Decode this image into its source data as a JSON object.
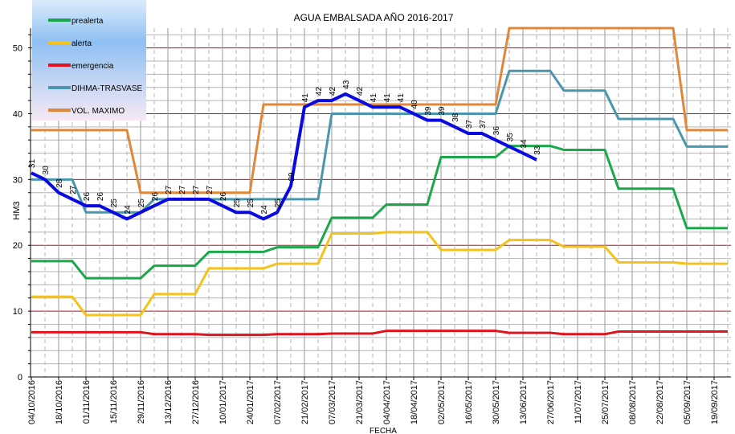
{
  "chart_data": {
    "type": "line",
    "title": "AGUA EMBALSADA AÑO 2016-2017",
    "xlabel": "FECHA",
    "ylabel": "HM3",
    "ylim": [
      0,
      53
    ],
    "yticks": [
      0,
      10,
      20,
      30,
      40,
      50
    ],
    "grid": true,
    "legend_position": "top-left",
    "x_tick_labels": [
      "04/10/2016",
      "18/10/2016",
      "01/11/2016",
      "15/11/2016",
      "29/11/2016",
      "13/12/2016",
      "27/12/2016",
      "10/01/2017",
      "24/01/2017",
      "07/02/2017",
      "21/02/2017",
      "07/03/2017",
      "21/03/2017",
      "04/04/2017",
      "18/04/2017",
      "02/05/2017",
      "16/05/2017",
      "30/05/2017",
      "13/06/2017",
      "27/06/2017",
      "11/07/2017",
      "25/07/2017",
      "08/08/2017",
      "22/08/2017",
      "05/09/2017",
      "19/09/2017"
    ],
    "series": [
      {
        "name": "prealerta",
        "color": "#1aa84a",
        "values": [
          17.6,
          17.6,
          17.6,
          17.6,
          15,
          15,
          15,
          15,
          15,
          16.9,
          16.9,
          16.9,
          16.9,
          19,
          19,
          19,
          19,
          19,
          19.7,
          19.7,
          19.7,
          19.7,
          24.2,
          24.2,
          24.2,
          24.2,
          26.2,
          26.2,
          26.2,
          26.2,
          33.4,
          33.4,
          33.4,
          33.4,
          33.4,
          35.1,
          35.1,
          35.1,
          35.1,
          34.5,
          34.5,
          34.5,
          34.5,
          28.6,
          28.6,
          28.6,
          28.6,
          28.6,
          22.6,
          22.6,
          22.6,
          22.6
        ]
      },
      {
        "name": "alerta",
        "color": "#f5c11b",
        "values": [
          12.2,
          12.2,
          12.2,
          12.2,
          9.4,
          9.4,
          9.4,
          9.4,
          9.4,
          12.6,
          12.6,
          12.6,
          12.6,
          16.5,
          16.5,
          16.5,
          16.5,
          16.5,
          17.2,
          17.2,
          17.2,
          17.2,
          21.8,
          21.8,
          21.8,
          21.8,
          22,
          22,
          22,
          22,
          19.3,
          19.3,
          19.3,
          19.3,
          19.3,
          20.8,
          20.8,
          20.8,
          20.8,
          19.8,
          19.8,
          19.8,
          19.8,
          17.4,
          17.4,
          17.4,
          17.4,
          17.4,
          17.2,
          17.2,
          17.2,
          17.2
        ]
      },
      {
        "name": "emergencia",
        "color": "#e0141e",
        "values": [
          6.8,
          6.8,
          6.8,
          6.8,
          6.8,
          6.8,
          6.8,
          6.8,
          6.8,
          6.5,
          6.5,
          6.5,
          6.5,
          6.4,
          6.4,
          6.4,
          6.4,
          6.4,
          6.5,
          6.5,
          6.5,
          6.5,
          6.6,
          6.6,
          6.6,
          6.6,
          7,
          7,
          7,
          7,
          7,
          7,
          7,
          7,
          7,
          6.7,
          6.7,
          6.7,
          6.7,
          6.5,
          6.5,
          6.5,
          6.5,
          6.9,
          6.9,
          6.9,
          6.9,
          6.9,
          6.9,
          6.9,
          6.9,
          6.9
        ]
      },
      {
        "name": "DIHMA-TRASVASE",
        "color": "#4a97ad",
        "values": [
          30,
          30,
          30,
          30,
          25,
          25,
          25,
          25,
          25,
          27,
          27,
          27,
          27,
          27,
          27,
          27,
          27,
          27,
          27,
          27,
          27,
          27,
          40,
          40,
          40,
          40,
          40,
          40,
          40,
          40,
          40,
          40,
          40,
          40,
          40,
          46.5,
          46.5,
          46.5,
          46.5,
          43.5,
          43.5,
          43.5,
          43.5,
          39.2,
          39.2,
          39.2,
          39.2,
          39.2,
          35,
          35,
          35,
          35
        ]
      },
      {
        "name": "VOL. MAXIMO",
        "color": "#e0873a",
        "values": [
          37.5,
          37.5,
          37.5,
          37.5,
          37.5,
          37.5,
          37.5,
          37.5,
          28,
          28,
          28,
          28,
          28,
          28,
          28,
          28,
          28,
          41.4,
          41.4,
          41.4,
          41.4,
          41.4,
          41.4,
          41.4,
          41.4,
          41.4,
          41.4,
          41.4,
          41.4,
          41.4,
          41.4,
          41.4,
          41.4,
          41.4,
          41.4,
          53,
          53,
          53,
          53,
          53,
          53,
          53,
          53,
          53,
          53,
          53,
          53,
          53,
          37.5,
          37.5,
          37.5,
          37.5
        ]
      },
      {
        "color": "#0a0ae0",
        "data_labels": true,
        "values": [
          31,
          30,
          28,
          27,
          26,
          26,
          25,
          24,
          25,
          26,
          27,
          27,
          27,
          27,
          26,
          25,
          25,
          24,
          25,
          29,
          41,
          42,
          42,
          43,
          42,
          41,
          41,
          41,
          40,
          39,
          39,
          38,
          37,
          37,
          36,
          35,
          34,
          33
        ]
      }
    ]
  }
}
